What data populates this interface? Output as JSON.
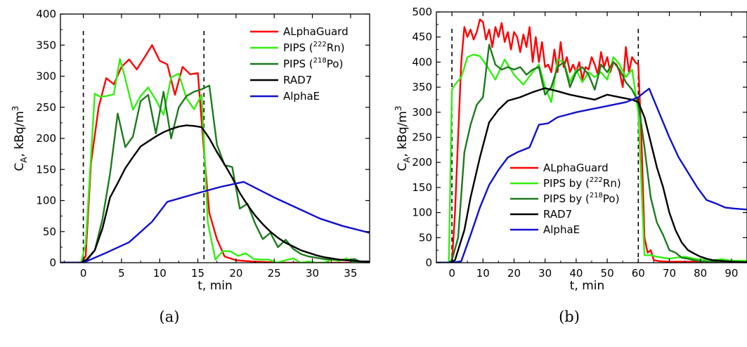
{
  "chart_data": [
    {
      "type": "line",
      "caption": "(a)",
      "xlabel": "t, min",
      "ylabel": "C",
      "ylabel_sub": "A",
      "ylabel_rest": ", kBq/m",
      "ylabel_sup": "3",
      "xlim": [
        -3,
        37.5
      ],
      "ylim": [
        0,
        400
      ],
      "xticks": [
        0,
        5,
        10,
        15,
        20,
        25,
        30,
        35
      ],
      "yticks": [
        0,
        50,
        100,
        150,
        200,
        250,
        300,
        350,
        400
      ],
      "grid": false,
      "vlines": [
        0,
        15.8
      ],
      "legend": {
        "placement": "top-right",
        "items": [
          {
            "pre": "ALphaGuard",
            "sup": "",
            "post": ""
          },
          {
            "pre": "PIPS (",
            "sup": "222",
            "post": "Rn)"
          },
          {
            "pre": "PIPS (",
            "sup": "218",
            "post": "Po)"
          },
          {
            "pre": "RAD7",
            "sup": "",
            "post": ""
          },
          {
            "pre": "AlphaE",
            "sup": "",
            "post": ""
          }
        ]
      },
      "series": [
        {
          "name": "ALphaGuard",
          "color": "#ff0000",
          "x": [
            -3,
            -0.3,
            0.3,
            1,
            2,
            3,
            4,
            5,
            6,
            7,
            8,
            9,
            10,
            11,
            12,
            13,
            14,
            15,
            15.8,
            16.5,
            17.5,
            18.5,
            20,
            22,
            24,
            26,
            28,
            30,
            32,
            34,
            37.5
          ],
          "y": [
            0,
            0,
            10,
            160,
            250,
            297,
            287,
            315,
            327,
            311,
            330,
            350,
            325,
            319,
            270,
            315,
            303,
            305,
            180,
            80,
            38,
            10,
            4,
            2,
            1,
            0,
            0,
            0,
            0,
            0,
            0
          ]
        },
        {
          "name": "PIPS (222Rn)",
          "color": "#33ee11",
          "x": [
            -3,
            -0.3,
            0.3,
            1.5,
            2.2,
            3,
            4,
            4.8,
            5.5,
            6.5,
            7.5,
            8.5,
            9.5,
            10.5,
            11.5,
            12.5,
            13.5,
            14.5,
            15.5,
            16.3,
            17.3,
            18.3,
            19.3,
            20.3,
            21.3,
            22.3,
            23.3,
            24.3,
            25.3,
            26.5,
            27.5,
            28.5,
            29.5,
            30.5,
            31.5,
            32.5,
            33.5,
            34.5,
            35.5,
            36.5,
            37.5
          ],
          "y": [
            0,
            0,
            30,
            272,
            267,
            268,
            271,
            328,
            296,
            246,
            268,
            282,
            262,
            238,
            298,
            304,
            265,
            247,
            270,
            65,
            5,
            19,
            18,
            11,
            15,
            6,
            5,
            5,
            0,
            4,
            7,
            0,
            2,
            0,
            0,
            5,
            3,
            7,
            0,
            0,
            0
          ]
        },
        {
          "name": "PIPS (218Po)",
          "color": "#1e7a1e",
          "x": [
            -3,
            -0.3,
            0.4,
            1.5,
            2.5,
            3.5,
            4.5,
            5.5,
            6.5,
            7.5,
            8.5,
            9.5,
            10.5,
            11.5,
            12.5,
            13.5,
            14.5,
            15.5,
            16.5,
            17.5,
            18.5,
            19.5,
            20.5,
            21.5,
            22.5,
            23.5,
            24.5,
            25.5,
            26.5,
            27.5,
            28.5,
            29.5,
            30.5,
            31.5,
            32.5,
            33.5,
            34.5,
            35.5,
            36.5,
            37.5
          ],
          "y": [
            0,
            0,
            5,
            20,
            70,
            143,
            240,
            186,
            203,
            260,
            270,
            208,
            275,
            200,
            250,
            268,
            275,
            279,
            285,
            190,
            157,
            154,
            87,
            95,
            63,
            38,
            48,
            25,
            37,
            22,
            14,
            10,
            8,
            6,
            5,
            5,
            4,
            6,
            0,
            0
          ]
        },
        {
          "name": "RAD7",
          "color": "#000000",
          "x": [
            -3,
            -0.3,
            0.5,
            1.5,
            2.5,
            3.5,
            4.5,
            5.5,
            6.5,
            7.5,
            8.5,
            9.5,
            10.5,
            11.5,
            12.5,
            13.5,
            14.5,
            15.5,
            16.5,
            17.5,
            18.5,
            19.5,
            20.5,
            21.5,
            22.5,
            23.5,
            24.5,
            25.5,
            26.5,
            27.5,
            28.5,
            29.5,
            30.5,
            31.5,
            32.5,
            33.5,
            34.5,
            35.5,
            36.5,
            37.5
          ],
          "y": [
            0,
            0,
            5,
            20,
            55,
            105,
            128,
            152,
            170,
            187,
            195,
            203,
            210,
            215,
            219,
            221,
            220,
            218,
            200,
            178,
            158,
            137,
            112,
            93,
            76,
            62,
            50,
            40,
            32,
            26,
            20,
            16,
            12,
            9,
            7,
            5,
            4,
            3,
            2,
            2
          ]
        },
        {
          "name": "AlphaE",
          "color": "#1010cc",
          "x": [
            -3,
            0,
            3,
            6,
            9,
            11,
            15,
            18,
            21,
            25,
            28,
            31,
            34,
            37.5
          ],
          "y": [
            0,
            0,
            16,
            33,
            66,
            98,
            112,
            122,
            130,
            105,
            88,
            71,
            59,
            48
          ]
        }
      ]
    },
    {
      "type": "line",
      "caption": "(b)",
      "xlabel": "t, min",
      "ylabel": "C",
      "ylabel_sub": "A",
      "ylabel_rest": ", kBq/m",
      "ylabel_sup": "3",
      "xlim": [
        -5,
        95
      ],
      "ylim": [
        0,
        500
      ],
      "xticks": [
        0,
        10,
        20,
        30,
        40,
        50,
        60,
        70,
        80,
        90
      ],
      "yticks": [
        0,
        50,
        100,
        150,
        200,
        250,
        300,
        350,
        400,
        450,
        500
      ],
      "grid": false,
      "vlines": [
        0,
        60
      ],
      "legend": {
        "placement": "lower-middle",
        "items": [
          {
            "pre": "ALphaGuard",
            "sup": "",
            "post": ""
          },
          {
            "pre": "PIPS by (",
            "sup": "222",
            "post": "Rn)"
          },
          {
            "pre": "PIPS by (",
            "sup": "218",
            "post": "Po)"
          },
          {
            "pre": "RAD7",
            "sup": "",
            "post": ""
          },
          {
            "pre": "AlphaE",
            "sup": "",
            "post": ""
          }
        ]
      },
      "series": [
        {
          "name": "ALphaGuard",
          "color": "#ff0000",
          "x": [
            -5,
            0,
            1,
            2,
            3,
            4,
            5,
            6,
            7,
            8,
            9,
            10,
            11,
            12,
            13,
            14,
            15,
            16,
            17,
            18,
            19,
            20,
            21,
            22,
            23,
            24,
            25,
            26,
            27,
            28,
            29,
            30,
            31,
            32,
            33,
            34,
            35,
            36,
            37,
            38,
            39,
            40,
            41,
            42,
            43,
            44,
            45,
            46,
            47,
            48,
            49,
            50,
            51,
            52,
            53,
            54,
            55,
            56,
            57,
            58,
            59,
            60,
            61,
            62,
            63,
            64,
            65,
            67,
            70,
            75,
            80,
            85,
            90,
            95
          ],
          "y": [
            0,
            0,
            100,
            250,
            400,
            470,
            450,
            465,
            445,
            460,
            485,
            480,
            445,
            465,
            430,
            470,
            450,
            478,
            440,
            460,
            425,
            460,
            450,
            420,
            455,
            430,
            470,
            400,
            450,
            400,
            440,
            390,
            395,
            380,
            425,
            380,
            440,
            390,
            410,
            380,
            395,
            380,
            400,
            365,
            390,
            385,
            410,
            395,
            375,
            420,
            390,
            410,
            380,
            400,
            395,
            380,
            350,
            430,
            380,
            410,
            400,
            395,
            250,
            50,
            20,
            25,
            5,
            3,
            2,
            2,
            2,
            2,
            2,
            2
          ]
        },
        {
          "name": "PIPS by (222Rn)",
          "color": "#33ee11",
          "x": [
            -5,
            -1,
            0,
            1,
            3,
            5,
            7,
            9,
            11,
            14,
            17,
            20,
            23,
            26,
            28,
            30,
            32,
            34,
            36,
            38,
            40,
            42,
            44,
            46,
            48,
            50,
            52,
            54,
            56,
            58,
            60,
            62,
            64,
            66,
            68,
            70,
            72,
            75,
            78,
            81,
            84,
            87,
            90,
            95
          ],
          "y": [
            0,
            0,
            345,
            355,
            370,
            410,
            415,
            412,
            395,
            365,
            405,
            375,
            355,
            380,
            395,
            350,
            320,
            405,
            400,
            360,
            385,
            360,
            380,
            370,
            380,
            365,
            410,
            395,
            370,
            385,
            300,
            15,
            15,
            12,
            10,
            8,
            10,
            12,
            8,
            6,
            5,
            7,
            4,
            4
          ]
        },
        {
          "name": "PIPS by (218Po)",
          "color": "#1e7a1e",
          "x": [
            -5,
            -1,
            0,
            2,
            4,
            6,
            8,
            10,
            12,
            14,
            16,
            18,
            20,
            22,
            24,
            26,
            28,
            30,
            32,
            34,
            36,
            38,
            40,
            42,
            44,
            46,
            48,
            50,
            52,
            54,
            56,
            58,
            60,
            62,
            64,
            66,
            68,
            70,
            72,
            74,
            76,
            78,
            80,
            82,
            84,
            86,
            88,
            90,
            95
          ],
          "y": [
            0,
            0,
            5,
            50,
            220,
            275,
            315,
            330,
            435,
            395,
            385,
            390,
            385,
            390,
            375,
            385,
            390,
            335,
            350,
            390,
            400,
            350,
            380,
            390,
            375,
            345,
            395,
            380,
            400,
            385,
            360,
            345,
            320,
            230,
            130,
            80,
            55,
            25,
            20,
            10,
            8,
            5,
            3,
            2,
            2,
            1,
            0,
            0,
            0
          ]
        },
        {
          "name": "RAD7",
          "color": "#000000",
          "x": [
            -5,
            -1,
            0,
            1,
            2,
            4,
            6,
            9,
            12,
            15,
            18,
            22,
            26,
            30,
            34,
            38,
            42,
            46,
            50,
            54,
            58,
            60,
            62,
            64,
            66,
            68,
            70,
            72,
            74,
            76,
            78,
            80,
            82,
            84,
            86,
            88,
            90,
            95
          ],
          "y": [
            0,
            0,
            2,
            5,
            25,
            65,
            130,
            210,
            280,
            305,
            323,
            330,
            340,
            348,
            342,
            335,
            330,
            325,
            335,
            330,
            325,
            320,
            290,
            240,
            190,
            150,
            100,
            65,
            40,
            25,
            18,
            12,
            8,
            5,
            4,
            3,
            2,
            1
          ]
        },
        {
          "name": "AlphaE",
          "color": "#1010cc",
          "x": [
            -5,
            0,
            3,
            6,
            9,
            12,
            15,
            18,
            21,
            25,
            28,
            31,
            34,
            37,
            40,
            44,
            48,
            52,
            56,
            60,
            62,
            63.5,
            67,
            70,
            73,
            76,
            79,
            82,
            85,
            88,
            91,
            95
          ],
          "y": [
            0,
            0,
            3,
            55,
            110,
            155,
            185,
            210,
            220,
            230,
            275,
            278,
            290,
            295,
            300,
            305,
            310,
            315,
            320,
            330,
            340,
            347,
            295,
            250,
            210,
            180,
            150,
            125,
            118,
            110,
            108,
            106
          ]
        }
      ]
    }
  ]
}
